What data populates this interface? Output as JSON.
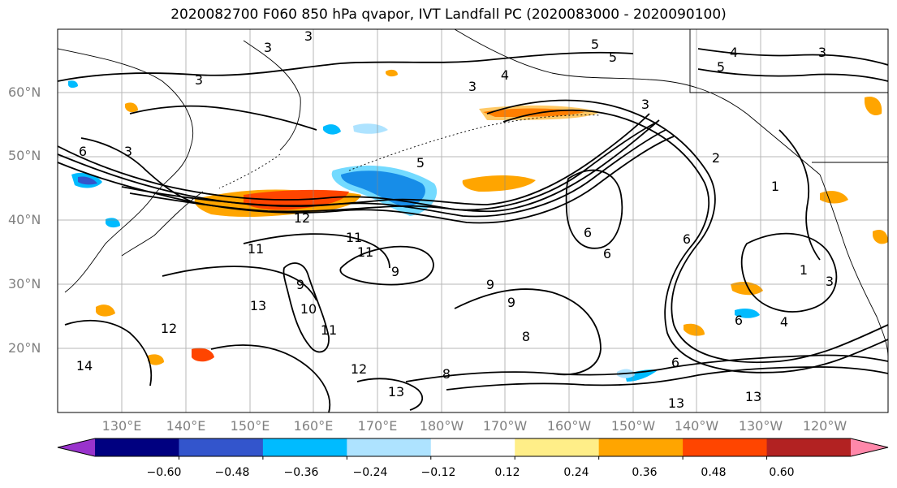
{
  "title": "2020082700 F060 850 hPa qvapor, IVT Landfall PC (2020083000 - 2020090100)",
  "map": {
    "lat_labels": [
      "60°N",
      "50°N",
      "40°N",
      "30°N",
      "20°N"
    ],
    "lon_labels": [
      "130°E",
      "140°E",
      "150°E",
      "160°E",
      "170°E",
      "180°W",
      "170°W",
      "160°W",
      "150°W",
      "140°W",
      "130°W",
      "120°W"
    ],
    "lat_range": [
      10,
      70
    ],
    "lon_range_east": [
      120,
      250
    ],
    "contour_labels": [
      "3",
      "3",
      "3",
      "5",
      "5",
      "4",
      "3",
      "5",
      "3",
      "4",
      "3",
      "6",
      "3",
      "2",
      "1",
      "5",
      "12",
      "11",
      "11",
      "9",
      "9",
      "9",
      "10",
      "11",
      "12",
      "13",
      "12",
      "13",
      "13",
      "8",
      "9",
      "8",
      "6",
      "6",
      "6",
      "6",
      "4",
      "6",
      "3",
      "1",
      "11",
      "13",
      "14"
    ]
  },
  "colorbar": {
    "colors": [
      "#9933cc",
      "#000080",
      "#3355cc",
      "#00bbff",
      "#aee3ff",
      "#ffffff",
      "#ffee88",
      "#ffa500",
      "#ff4500",
      "#b22222",
      "#ff88aa"
    ],
    "ticks": [
      "−0.60",
      "−0.48",
      "−0.36",
      "−0.24",
      "−0.12",
      "0.12",
      "0.24",
      "0.36",
      "0.48",
      "0.60"
    ],
    "extend": "both"
  }
}
